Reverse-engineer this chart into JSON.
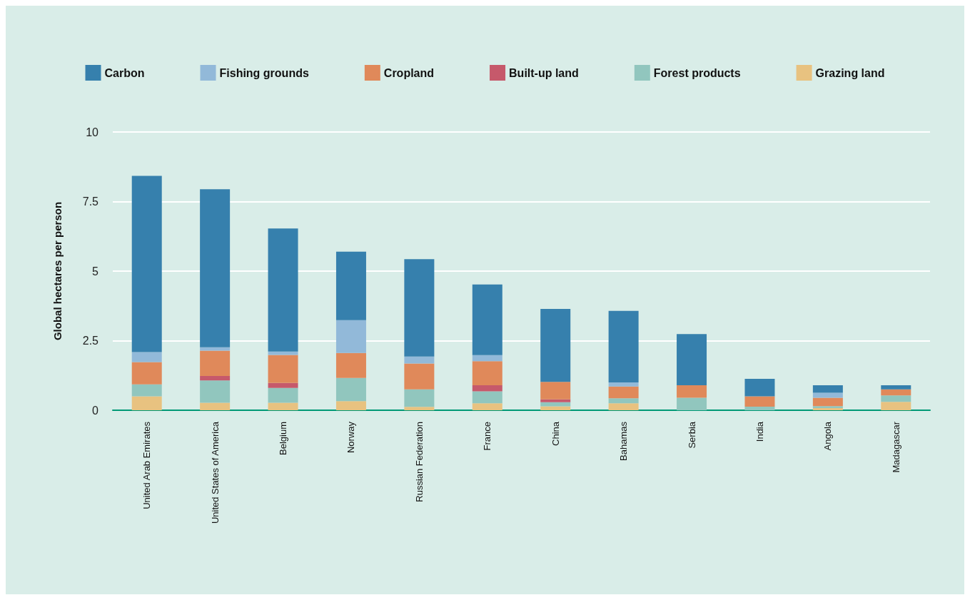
{
  "chart_data": {
    "type": "bar",
    "stacked": true,
    "ylabel": "Global hectares per person",
    "categories": [
      "United Arab Emirates",
      "United States of America",
      "Belgium",
      "Norway",
      "Russian Federation",
      "France",
      "China",
      "Bahamas",
      "Serbia",
      "India",
      "Angola",
      "Madagascar"
    ],
    "series": [
      {
        "name": "Grazing land",
        "color": "#e8c280",
        "values": [
          0.5,
          0.27,
          0.27,
          0.33,
          0.12,
          0.25,
          0.14,
          0.25,
          null,
          null,
          0.08,
          0.3
        ]
      },
      {
        "name": "Forest products",
        "color": "#91c6be",
        "values": [
          0.43,
          0.8,
          0.53,
          0.83,
          0.63,
          0.43,
          0.15,
          0.18,
          0.45,
          0.13,
          0.07,
          0.23
        ]
      },
      {
        "name": "Built-up land",
        "color": "#c6596b",
        "values": [
          null,
          0.16,
          0.18,
          null,
          null,
          0.22,
          0.1,
          null,
          null,
          null,
          null,
          null
        ]
      },
      {
        "name": "Cropland",
        "color": "#e0895a",
        "values": [
          0.8,
          0.91,
          1.01,
          0.9,
          0.93,
          0.86,
          0.63,
          0.42,
          0.45,
          0.37,
          0.3,
          0.22
        ]
      },
      {
        "name": "Fishing grounds",
        "color": "#92b9d9",
        "values": [
          0.36,
          0.12,
          0.12,
          1.18,
          0.25,
          0.22,
          null,
          0.15,
          null,
          null,
          0.18,
          null
        ]
      },
      {
        "name": "Carbon",
        "color": "#3680ad",
        "values": [
          6.33,
          5.68,
          4.42,
          2.46,
          3.5,
          2.54,
          2.62,
          2.57,
          1.84,
          0.63,
          0.27,
          0.15
        ]
      }
    ],
    "ylim": [
      0,
      10
    ],
    "yticks": [
      0,
      2.5,
      5,
      7.5,
      10
    ],
    "grid": "y",
    "legend": "top"
  }
}
